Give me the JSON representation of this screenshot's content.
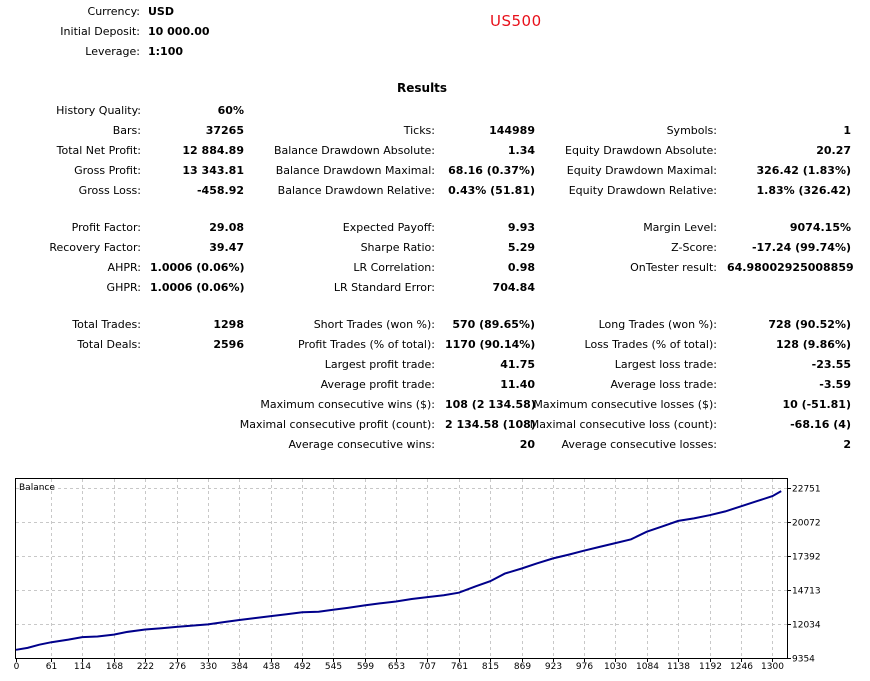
{
  "header": {
    "currency_label": "Currency:",
    "currency_value": "USD",
    "deposit_label": "Initial Deposit:",
    "deposit_value": "10 000.00",
    "leverage_label": "Leverage:",
    "leverage_value": "1:100",
    "symbol": "US500"
  },
  "results_title": "Results",
  "history_quality": {
    "label": "History Quality:",
    "value": "60%"
  },
  "rows": [
    [
      {
        "label": "Bars:",
        "value": "37265"
      },
      {
        "label": "Ticks:",
        "value": "144989"
      },
      {
        "label": "Symbols:",
        "value": "1"
      }
    ],
    [
      {
        "label": "Total Net Profit:",
        "value": "12 884.89"
      },
      {
        "label": "Balance Drawdown Absolute:",
        "value": "1.34"
      },
      {
        "label": "Equity Drawdown Absolute:",
        "value": "20.27"
      }
    ],
    [
      {
        "label": "Gross Profit:",
        "value": "13 343.81"
      },
      {
        "label": "Balance Drawdown Maximal:",
        "value": "68.16 (0.37%)"
      },
      {
        "label": "Equity Drawdown Maximal:",
        "value": "326.42 (1.83%)"
      }
    ],
    [
      {
        "label": "Gross Loss:",
        "value": "-458.92"
      },
      {
        "label": "Balance Drawdown Relative:",
        "value": "0.43% (51.81)"
      },
      {
        "label": "Equity Drawdown Relative:",
        "value": "1.83% (326.42)"
      }
    ],
    [
      {
        "label": "Profit Factor:",
        "value": "29.08"
      },
      {
        "label": "Expected Payoff:",
        "value": "9.93"
      },
      {
        "label": "Margin Level:",
        "value": "9074.15%"
      }
    ],
    [
      {
        "label": "Recovery Factor:",
        "value": "39.47"
      },
      {
        "label": "Sharpe Ratio:",
        "value": "5.29"
      },
      {
        "label": "Z-Score:",
        "value": "-17.24 (99.74%)"
      }
    ],
    [
      {
        "label": "AHPR:",
        "value": "1.0006 (0.06%)"
      },
      {
        "label": "LR Correlation:",
        "value": "0.98"
      },
      {
        "label": "OnTester result:",
        "value": "64.98002925008859"
      }
    ],
    [
      {
        "label": "GHPR:",
        "value": "1.0006 (0.06%)"
      },
      {
        "label": "LR Standard Error:",
        "value": "704.84"
      },
      null
    ],
    [
      {
        "label": "Total Trades:",
        "value": "1298"
      },
      {
        "label": "Short Trades (won %):",
        "value": "570 (89.65%)"
      },
      {
        "label": "Long Trades (won %):",
        "value": "728 (90.52%)"
      }
    ],
    [
      {
        "label": "Total Deals:",
        "value": "2596"
      },
      {
        "label": "Profit Trades (% of total):",
        "value": "1170 (90.14%)"
      },
      {
        "label": "Loss Trades (% of total):",
        "value": "128 (9.86%)"
      }
    ],
    [
      null,
      {
        "label": "Largest profit trade:",
        "value": "41.75"
      },
      {
        "label": "Largest loss trade:",
        "value": "-23.55"
      }
    ],
    [
      null,
      {
        "label": "Average profit trade:",
        "value": "11.40"
      },
      {
        "label": "Average loss trade:",
        "value": "-3.59"
      }
    ],
    [
      null,
      {
        "label": "Maximum consecutive wins ($):",
        "value": "108 (2 134.58)"
      },
      {
        "label": "Maximum consecutive losses ($):",
        "value": "10 (-51.81)"
      }
    ],
    [
      null,
      {
        "label": "Maximal consecutive profit (count):",
        "value": "2 134.58 (108)"
      },
      {
        "label": "Maximal consecutive loss (count):",
        "value": "-68.16 (4)"
      }
    ],
    [
      null,
      {
        "label": "Average consecutive wins:",
        "value": "20"
      },
      {
        "label": "Average consecutive losses:",
        "value": "2"
      }
    ]
  ],
  "chart_data": {
    "type": "line",
    "title": "Balance",
    "xlabel": "",
    "ylabel": "",
    "line_color": "#00008b",
    "grid": true,
    "x_ticks": [
      0,
      61,
      114,
      168,
      222,
      276,
      330,
      384,
      438,
      492,
      545,
      599,
      653,
      707,
      761,
      815,
      869,
      923,
      976,
      1030,
      1084,
      1138,
      1192,
      1246,
      1300
    ],
    "y_ticks": [
      9354,
      12034,
      14713,
      17392,
      20072,
      22751
    ],
    "xlim": [
      0,
      1325
    ],
    "ylim": [
      9354,
      23450
    ],
    "x": [
      0,
      20,
      40,
      61,
      90,
      114,
      140,
      168,
      190,
      222,
      250,
      276,
      300,
      330,
      360,
      384,
      410,
      438,
      465,
      492,
      520,
      545,
      570,
      599,
      625,
      653,
      680,
      707,
      735,
      761,
      790,
      815,
      840,
      869,
      895,
      923,
      950,
      976,
      1003,
      1030,
      1057,
      1084,
      1110,
      1138,
      1165,
      1192,
      1219,
      1246,
      1273,
      1300,
      1315
    ],
    "y": [
      10000,
      10150,
      10400,
      10600,
      10800,
      11000,
      11050,
      11200,
      11400,
      11600,
      11700,
      11800,
      11900,
      12000,
      12200,
      12350,
      12500,
      12650,
      12800,
      12950,
      13000,
      13150,
      13300,
      13500,
      13650,
      13800,
      14000,
      14150,
      14300,
      14500,
      15000,
      15400,
      16000,
      16400,
      16800,
      17200,
      17500,
      17800,
      18100,
      18400,
      18700,
      19300,
      19700,
      20150,
      20350,
      20600,
      20900,
      21300,
      21700,
      22100,
      22500
    ]
  }
}
